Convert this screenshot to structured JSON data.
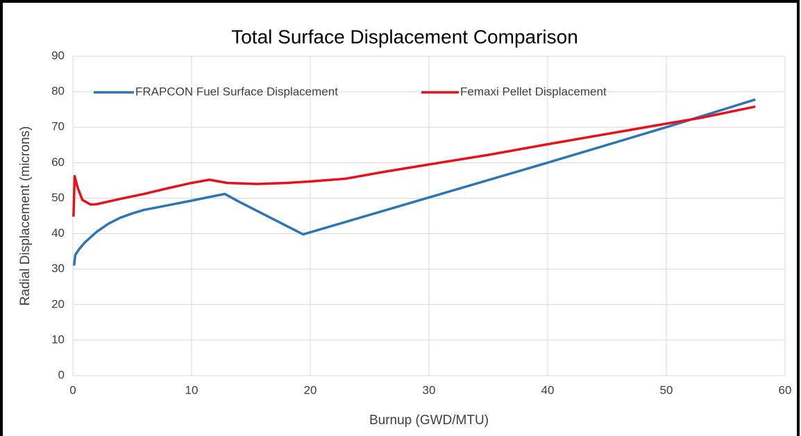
{
  "chart_data": {
    "type": "line",
    "title": "Total Surface Displacement Comparison",
    "xlabel": "Burnup (GWD/MTU)",
    "ylabel": "Radial Displacement (microns)",
    "xlim": [
      0,
      60
    ],
    "xticks": [
      0,
      10,
      20,
      30,
      40,
      50,
      60
    ],
    "ylim": [
      0,
      90
    ],
    "yticks": [
      0,
      10,
      20,
      30,
      40,
      50,
      60,
      70,
      80,
      90
    ],
    "grid": true,
    "legend": "top",
    "series": [
      {
        "name": "FRAPCON Fuel Surface Displacement",
        "color": "#2e75b6",
        "x": [
          0.1,
          0.2,
          0.5,
          1,
          2,
          3,
          4,
          5,
          6,
          8,
          10,
          12.8,
          14,
          19.4,
          30,
          40,
          50,
          57.5
        ],
        "values": [
          31,
          34,
          35.5,
          37.5,
          40.5,
          42.8,
          44.5,
          45.7,
          46.7,
          48,
          49.3,
          51.2,
          49,
          39.8,
          50.2,
          60,
          70,
          77.8
        ]
      },
      {
        "name": "Femaxi Pellet Displacement",
        "color": "#e8101a",
        "x": [
          0.05,
          0.15,
          0.4,
          0.8,
          1.5,
          2,
          4,
          6,
          8,
          10,
          11.5,
          13,
          15.5,
          18,
          20,
          23,
          26,
          30,
          35,
          40,
          45,
          50,
          53,
          57.5
        ],
        "values": [
          44.8,
          56.2,
          53,
          49.5,
          48.2,
          48.3,
          49.8,
          51.2,
          52.8,
          54.3,
          55.2,
          54.3,
          54,
          54.3,
          54.7,
          55.5,
          57.3,
          59.5,
          62.2,
          65.2,
          68.1,
          71,
          72.7,
          75.8
        ]
      }
    ]
  }
}
